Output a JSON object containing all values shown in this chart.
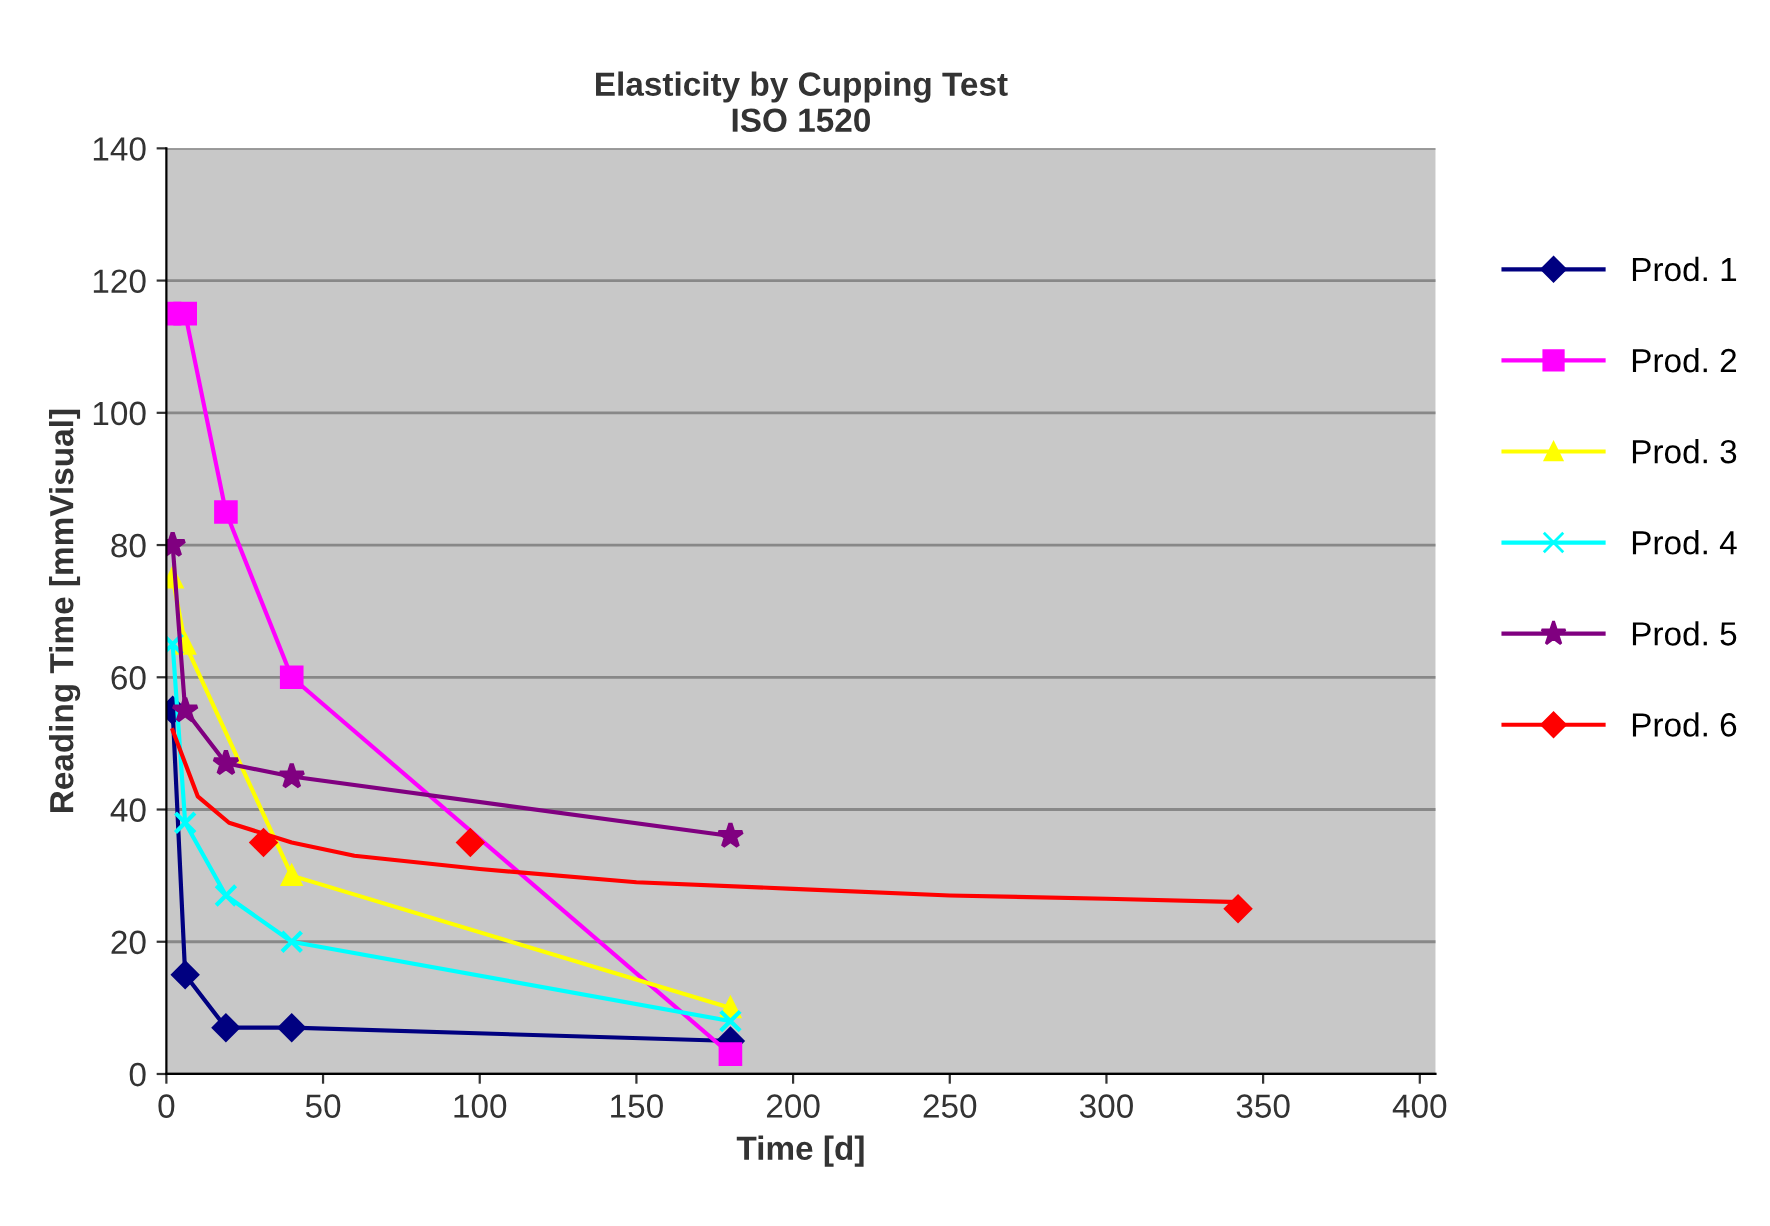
{
  "chart_data": {
    "type": "line",
    "title": "Elasticity by Cupping Test\nISO 1520",
    "xlabel": "Time [d]",
    "ylabel": "Reading Time [mmVisual]",
    "xlim": [
      0,
      405
    ],
    "xticks": [
      0,
      50,
      100,
      150,
      200,
      250,
      300,
      350,
      400
    ],
    "ylim": [
      0,
      140
    ],
    "yticks": [
      0,
      20,
      40,
      60,
      80,
      100,
      120,
      140
    ],
    "grid": "y",
    "legend": "right",
    "series": [
      {
        "name": "Prod. 1",
        "color": "#000080",
        "marker": "diamond",
        "x": [
          2,
          6,
          19,
          40,
          180
        ],
        "values": [
          55,
          15,
          7,
          7,
          5
        ]
      },
      {
        "name": "Prod. 2",
        "color": "#ff00ff",
        "marker": "square",
        "x": [
          1,
          6,
          19,
          40,
          180
        ],
        "values": [
          115,
          115,
          85,
          60,
          3
        ]
      },
      {
        "name": "Prod. 3",
        "color": "#ffff00",
        "marker": "triangle",
        "x": [
          2,
          6,
          40,
          180
        ],
        "values": [
          75,
          65,
          30,
          10
        ]
      },
      {
        "name": "Prod. 4",
        "color": "#00ffff",
        "marker": "cross",
        "x": [
          2,
          6,
          19,
          40,
          180
        ],
        "values": [
          65,
          38,
          27,
          20,
          8
        ]
      },
      {
        "name": "Prod. 5",
        "color": "#800080",
        "marker": "star",
        "x": [
          2,
          6,
          19,
          40,
          180
        ],
        "values": [
          80,
          55,
          47,
          45,
          36
        ]
      },
      {
        "name": "Prod. 6",
        "color": "#ff0000",
        "marker": "diamond",
        "type": "scatter",
        "x": [
          31,
          97,
          342
        ],
        "values": [
          35,
          35,
          25
        ]
      },
      {
        "color": "#ff0000",
        "marker": "none",
        "x": [
          2,
          10,
          20,
          40,
          60,
          100,
          150,
          200,
          250,
          300,
          342
        ],
        "values": [
          52,
          42,
          38,
          35,
          33,
          31,
          29,
          28,
          27,
          26.5,
          26
        ]
      }
    ]
  }
}
